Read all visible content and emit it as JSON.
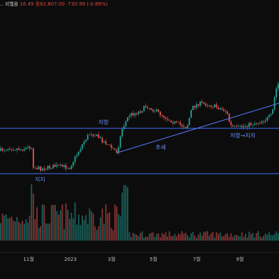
{
  "header": {
    "title_fragment": "‥ 쉬헬음",
    "quote_fragment": "16.49  종82,807.00  -730.99 (-0.88%)"
  },
  "chart_data": {
    "type": "candlestick",
    "x_ticks": [
      "11월",
      "2023",
      "3월",
      "5월",
      "7월",
      "9월"
    ],
    "annotations": [
      "저항",
      "추세",
      "지지",
      "저항→지지"
    ],
    "lines": [
      "resistance-support",
      "support",
      "trend"
    ],
    "colors": {
      "up": "#26a69a",
      "down": "#ef5350",
      "level_line": "#3f6fff",
      "trend_line": "#5a7dff",
      "annotation": "#6f8cff",
      "quote_text": "#e0443b"
    },
    "grid": false,
    "series": []
  }
}
